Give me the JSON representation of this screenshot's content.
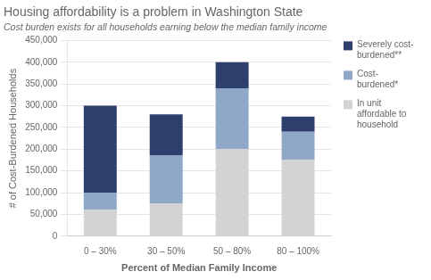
{
  "chart_data": {
    "type": "bar",
    "title": "Housing affordability is a problem in Washington State",
    "subtitle": "Cost burden exists for all households earning below the median family income",
    "xlabel": "Percent of Median Family Income",
    "ylabel": "# of Cost-Burdened Households",
    "categories": [
      "0 – 30%",
      "30 – 50%",
      "50 – 80%",
      "80 – 100%"
    ],
    "series": [
      {
        "name": "In unit\naffordable to\nhousehold",
        "color": "#d3d3d3",
        "values": [
          60000,
          75000,
          200000,
          175000
        ]
      },
      {
        "name": "Cost-\nburdened*",
        "color": "#8fa8c8",
        "values": [
          40000,
          110000,
          140000,
          65000
        ]
      },
      {
        "name": "Severely cost-\nburdened**",
        "color": "#2e3f6e",
        "values": [
          200000,
          95000,
          60000,
          35000
        ]
      }
    ],
    "stacked": true,
    "ylim": [
      0,
      450000
    ],
    "yticks": [
      0,
      {
        "value": 50000,
        "label": "50,000"
      },
      {
        "value": 100000,
        "label": "100,000"
      },
      {
        "value": 150000,
        "label": "150,000"
      },
      {
        "value": 200000,
        "label": "200,000"
      },
      {
        "value": 250000,
        "label": "250,000"
      },
      {
        "value": 300000,
        "label": "300,000"
      },
      {
        "value": 350000,
        "label": "350,000"
      },
      {
        "value": 400000,
        "label": "400,000"
      },
      {
        "value": 450000,
        "label": "450,000"
      }
    ],
    "grid": true,
    "legend": "right"
  }
}
